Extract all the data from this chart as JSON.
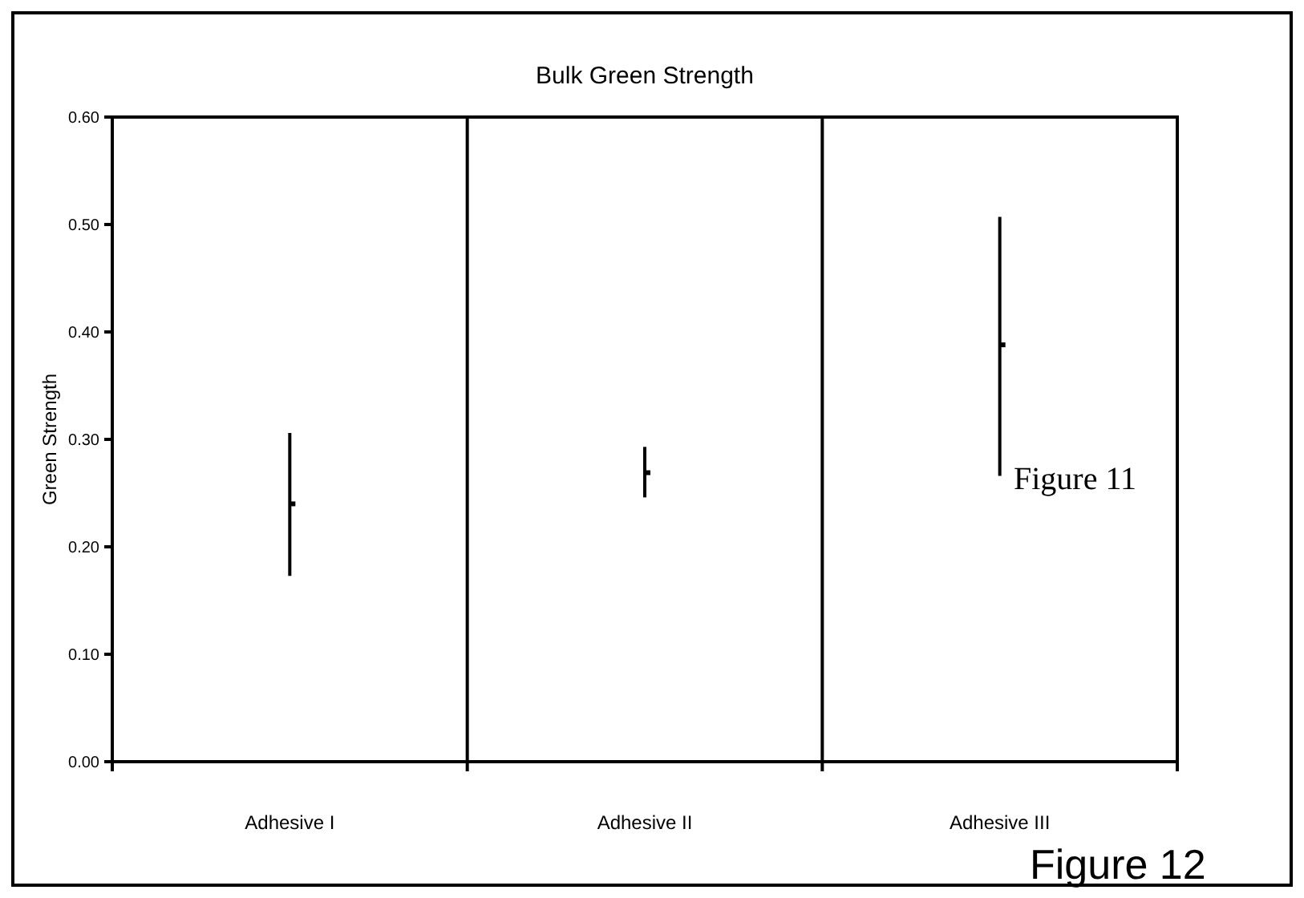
{
  "chart_data": {
    "type": "scatter",
    "title": "Bulk Green Strength",
    "ylabel": "Green Strength",
    "categories": [
      "Adhesive I",
      "Adhesive II",
      "Adhesive III"
    ],
    "values": [
      0.24,
      0.269,
      0.388
    ],
    "errors": [
      [
        0.173,
        0.306
      ],
      [
        0.246,
        0.293
      ],
      [
        0.266,
        0.507
      ]
    ],
    "color": "#000000",
    "marker": "square",
    "grid": "x",
    "ylim": [
      0,
      0.6
    ],
    "yticks": [
      {
        "value": 0,
        "label": "0.00"
      },
      {
        "value": 0.1,
        "label": "0.10"
      },
      {
        "value": 0.2,
        "label": "0.20"
      },
      {
        "value": 0.3,
        "label": "0.30"
      },
      {
        "value": 0.4,
        "label": "0.40"
      },
      {
        "value": 0.5,
        "label": "0.50"
      },
      {
        "value": 0.6,
        "label": "0.60"
      }
    ],
    "annotations": [
      "Figure 11",
      "Figure 12"
    ]
  }
}
